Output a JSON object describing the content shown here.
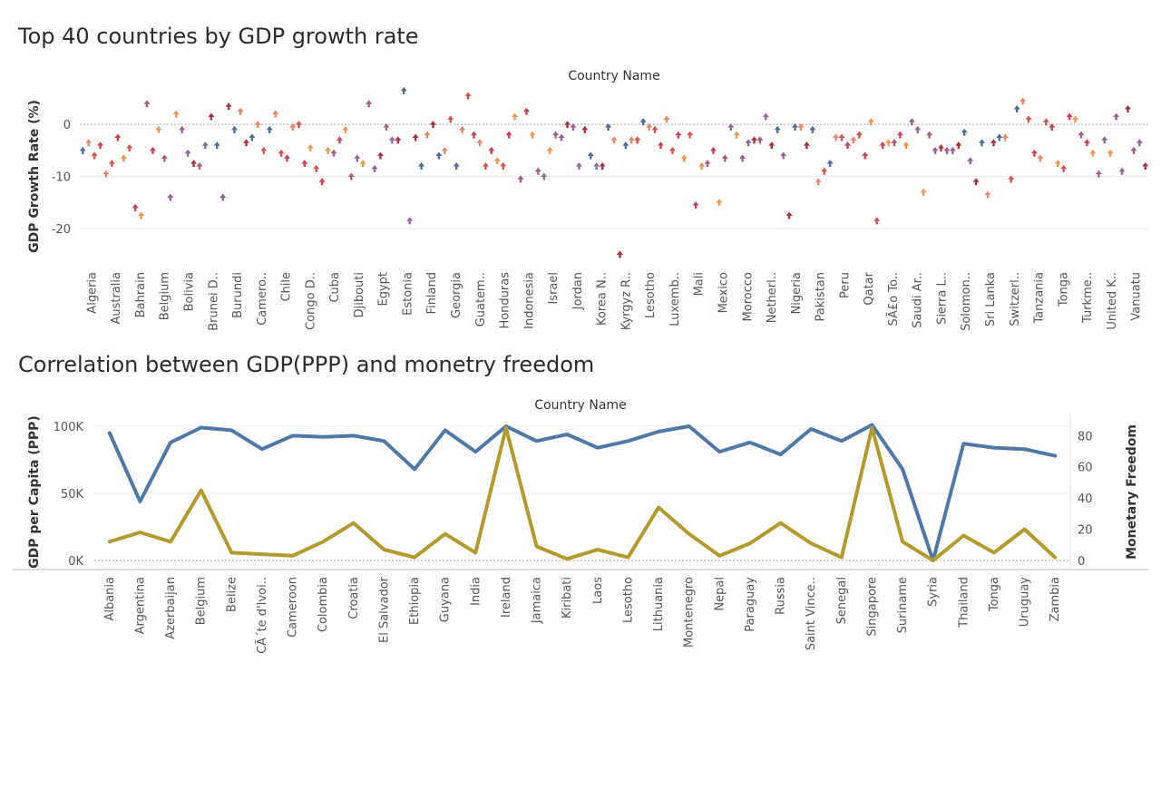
{
  "chart1": {
    "title": "Top 40 countries by GDP growth rate",
    "chart_data": {
      "type": "scatter",
      "header": "Country Name",
      "ylabel": "GDP Growth Rate (%)",
      "ylim": [
        -27,
        7
      ],
      "yticks": [
        0,
        -10,
        -20
      ],
      "grid": true,
      "marker": "up-arrow",
      "colors": [
        "#4e6d91",
        "#a75b86",
        "#d3534f",
        "#a23445",
        "#ef9651",
        "#e4876a",
        "#8f6795",
        "#c9425c"
      ],
      "x_labels": [
        "Algeria",
        "Australia",
        "Bahrain",
        "Belgium",
        "Bolivia",
        "Brunei D..",
        "Burundi",
        "Camero..",
        "Chile",
        "Congo D..",
        "Cuba",
        "Djibouti",
        "Egypt",
        "Estonia",
        "Finland",
        "Georgia",
        "Guatem..",
        "Honduras",
        "Indonesia",
        "Israel",
        "Jordan",
        "Korea N..",
        "Kyrgyz R..",
        "Lesotho",
        "Luxemb..",
        "Mali",
        "Mexico",
        "Morocco",
        "Netherl..",
        "Nigeria",
        "Pakistan",
        "Peru",
        "Qatar",
        "SÃ£o To..",
        "Saudi Ar..",
        "Sierra L..",
        "Solomon..",
        "Sri Lanka",
        "Switzerl..",
        "Tanzania",
        "Tonga",
        "Turkme..",
        "United K..",
        "Vanuatu"
      ],
      "values": [
        -5,
        -3.5,
        -6,
        -4,
        -9.5,
        -7.5,
        -2.5,
        -6.5,
        -4.5,
        -16,
        -17.5,
        4,
        -5,
        -1,
        -6.5,
        -14,
        2,
        -1,
        -5.5,
        -7.5,
        -8,
        -4,
        1.5,
        -4,
        -14,
        3.5,
        -1,
        2.5,
        -3.5,
        -2.5,
        0,
        -5,
        -1,
        2,
        -5.5,
        -6.5,
        -0.5,
        0,
        -7.5,
        -4.5,
        -8.5,
        -11,
        -5,
        -5.5,
        -3,
        -1,
        -10,
        -6.5,
        -7.5,
        4,
        -8.5,
        -6,
        -0.5,
        -3,
        -3,
        6.5,
        -18.5,
        -2.5,
        -8,
        -2,
        0,
        -6,
        -5,
        1,
        -8,
        -1,
        5.5,
        -2,
        -3.5,
        -8,
        -5,
        -7,
        -8,
        -2,
        1.5,
        -10.5,
        2.5,
        -2,
        -9,
        -10,
        -5,
        -2,
        -2.5,
        0,
        -0.5,
        -8,
        -1,
        -6,
        -8,
        -8,
        -0.5,
        -3,
        -25,
        -4,
        -3,
        -3,
        0.5,
        -0.5,
        -1,
        -4,
        1,
        -5,
        -2,
        -6.5,
        -2,
        -15.5,
        -8,
        -7.5,
        -5,
        -15,
        -6.5,
        -0.5,
        -2,
        -6.5,
        -3.5,
        -3,
        -3,
        1.5,
        -4,
        -1,
        -6,
        -17.5,
        -0.5,
        -0.5,
        -4,
        -1,
        -11,
        -9,
        -7.5,
        -2.5,
        -2.5,
        -4,
        -3,
        -2,
        -6,
        0.5,
        -18.5,
        -4,
        -3.5,
        -3.5,
        -2,
        -4,
        0.5,
        -1,
        -13,
        -2,
        -5,
        -4.5,
        -5,
        -5,
        -4,
        -1.5,
        -7,
        -11,
        -3.5,
        -13.5,
        -3.5,
        -2.5,
        -2.5,
        -10.5,
        3,
        4.5,
        1,
        -5.5,
        -6.5,
        0.5,
        -0.5,
        -7.5,
        -8.5,
        1.5,
        1,
        -2,
        -3.5,
        -5.5,
        -9.5,
        -3,
        -5.5,
        1.5,
        -9,
        3,
        -5,
        -3.5,
        -8
      ]
    }
  },
  "chart2": {
    "title": "Correlation between GDP(PPP) and monetry freedom",
    "chart_data": {
      "type": "line",
      "header": "Country Name",
      "categories": [
        "Albania",
        "Argentina",
        "Azerbaijan",
        "Belgium",
        "Belize",
        "CÃ´te d'Ivoi..",
        "Cameroon",
        "Colombia",
        "Croatia",
        "El Salvador",
        "Ethiopia",
        "Guyana",
        "India",
        "Ireland",
        "Jamaica",
        "Kiribati",
        "Laos",
        "Lesotho",
        "Lithuania",
        "Montenegro",
        "Nepal",
        "Paraguay",
        "Russia",
        "Saint Vince..",
        "Senegal",
        "Singapore",
        "Suriname",
        "Syria",
        "Thailand",
        "Tonga",
        "Uruguay",
        "Zambia"
      ],
      "ylabel_left": "GDP per Capita (PPP)",
      "ylabel_right": "Monetary Freedom",
      "ylim_left": [
        0,
        100000
      ],
      "ylim_right": [
        0,
        86
      ],
      "yticks_left": [
        "100K",
        "50K",
        "0K"
      ],
      "yticks_right": [
        "80",
        "60",
        "40",
        "20",
        "0"
      ],
      "series": [
        {
          "axis": "left",
          "color": "#4e79a7",
          "values": [
            95000,
            44000,
            88000,
            99000,
            97000,
            83000,
            93000,
            92000,
            93000,
            89000,
            68000,
            97000,
            81000,
            100000,
            89000,
            94000,
            84000,
            89000,
            96000,
            100000,
            81000,
            88000,
            79000,
            98000,
            89000,
            101000,
            68000,
            0,
            87000,
            84000,
            83000,
            78000
          ]
        },
        {
          "axis": "right",
          "color": "#b39a2d",
          "values": [
            12,
            18,
            12,
            45,
            5,
            4,
            3,
            12,
            24,
            7,
            2,
            17,
            5,
            85,
            9,
            1,
            7,
            2,
            34,
            17,
            3,
            11,
            24,
            11,
            2,
            85,
            12,
            0,
            16,
            5,
            20,
            2
          ]
        }
      ]
    }
  }
}
